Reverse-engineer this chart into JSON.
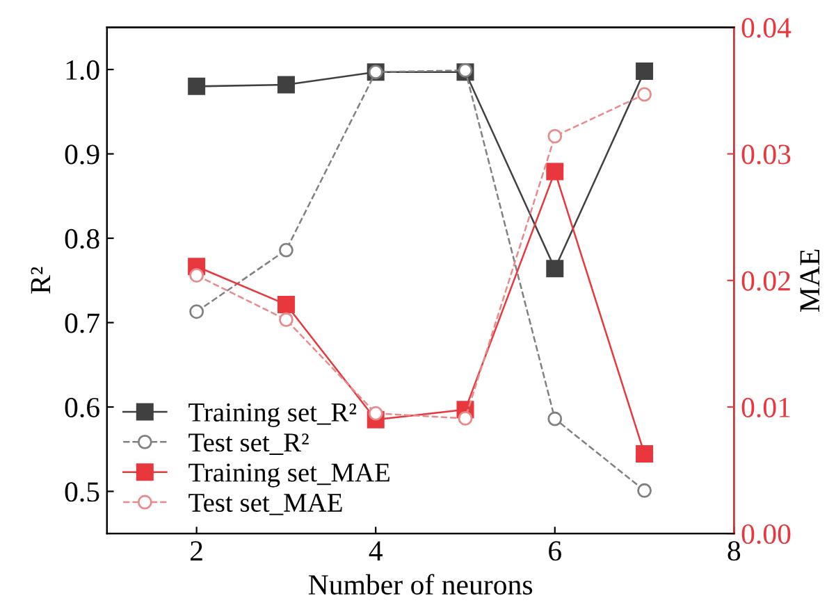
{
  "chart_data": {
    "type": "line",
    "xlabel": "Number of neurons",
    "ylabel": "R²",
    "y2label": "MAE",
    "x": [
      2,
      3,
      4,
      5,
      6,
      7
    ],
    "xlim": [
      1,
      8
    ],
    "xticks": [
      2,
      4,
      6,
      8
    ],
    "ylim": [
      0.45,
      1.05
    ],
    "yticks": [
      0.5,
      0.6,
      0.7,
      0.8,
      0.9,
      {
        "value": 1,
        "label": "1.0"
      }
    ],
    "y2lim": [
      0,
      0.04
    ],
    "y2ticks": [
      {
        "value": 0,
        "label": "0.00"
      },
      0.01,
      0.02,
      0.03,
      0.04
    ],
    "legend": "bottom left",
    "grid": false,
    "series": [
      {
        "name": "Training set_R²",
        "color": "#404040",
        "marker": "square",
        "line_style": "solid",
        "values": [
          0.98,
          0.982,
          0.997,
          0.997,
          0.764,
          0.998
        ]
      },
      {
        "name": "Test set_R²",
        "color": "#808080",
        "marker": "circle",
        "line_style": "dashed",
        "values": [
          0.713,
          0.786,
          0.997,
          0.999,
          0.586,
          0.501
        ]
      },
      {
        "name": "Training set_MAE",
        "color": "#e8383d",
        "marker": "square",
        "line_style": "solid",
        "axis": "y2",
        "values": [
          0.0211,
          0.0181,
          0.009,
          0.0098,
          0.0286,
          0.0063
        ]
      },
      {
        "name": "Test set_MAE",
        "color": "#e88a8c",
        "marker": "circle",
        "line_style": "dashed",
        "axis": "y2",
        "values": [
          0.0204,
          0.0169,
          0.0095,
          0.0091,
          0.0314,
          0.0347
        ]
      }
    ]
  }
}
